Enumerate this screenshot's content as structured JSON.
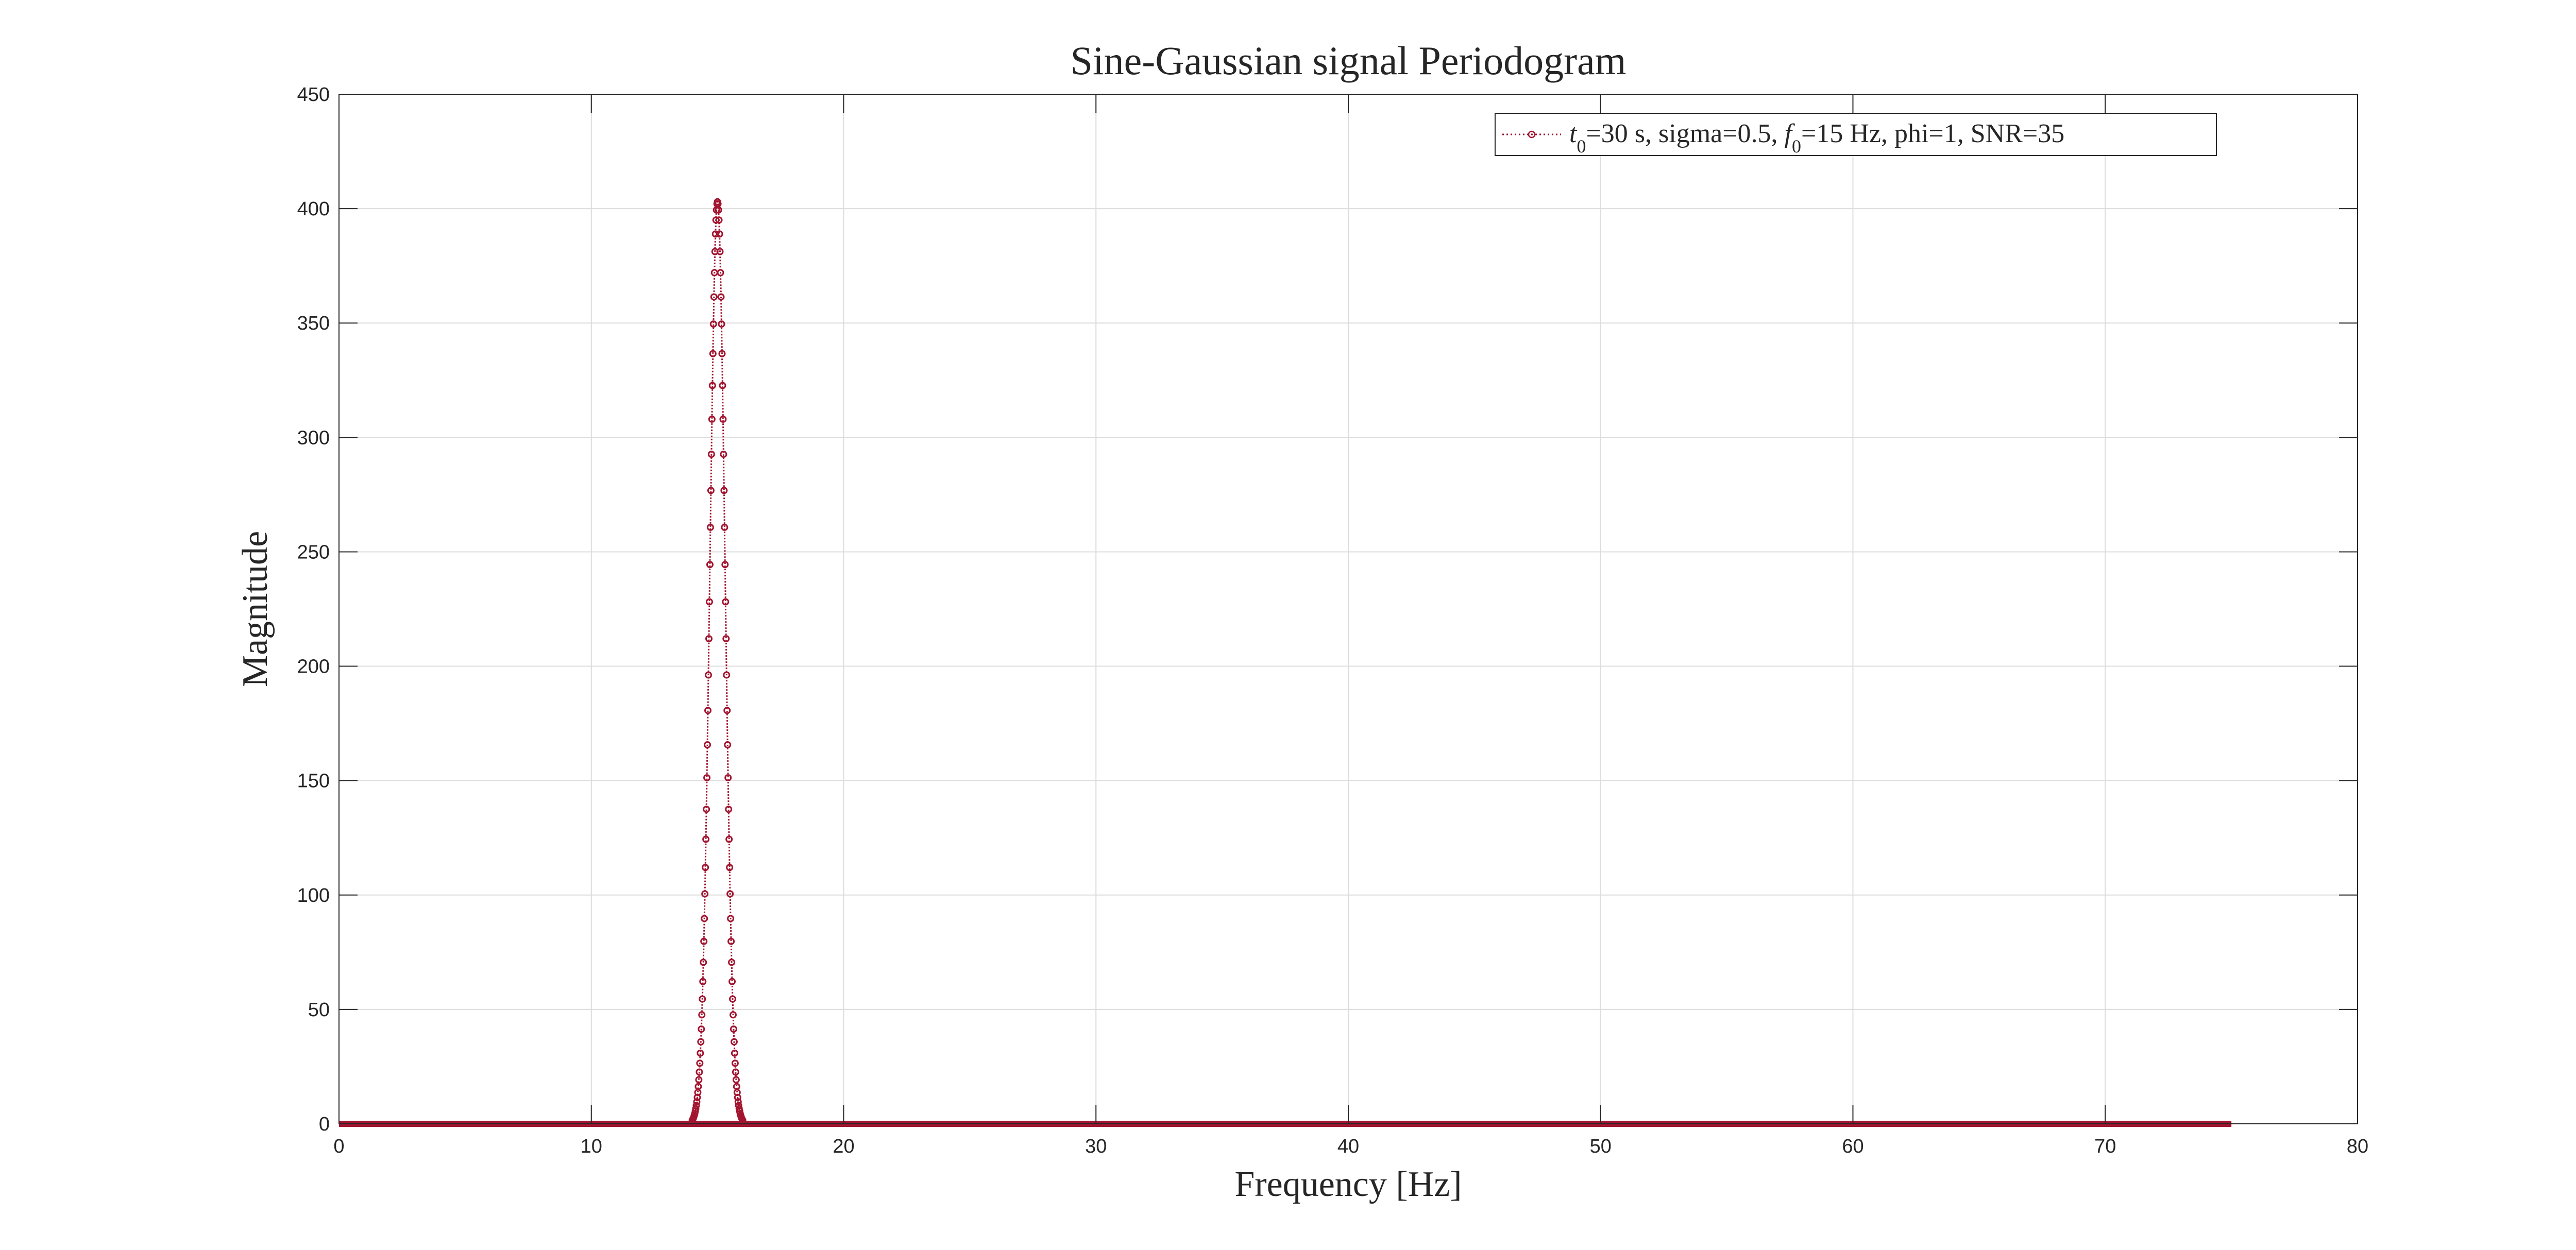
{
  "chart_data": {
    "type": "line",
    "title": "Sine-Gaussian signal Periodogram",
    "xlabel": "Frequency [Hz]",
    "ylabel": "Magnitude",
    "xlim": [
      0,
      80
    ],
    "ylim": [
      0,
      450
    ],
    "xticks": [
      0,
      10,
      20,
      30,
      40,
      50,
      60,
      70,
      80
    ],
    "yticks": [
      0,
      50,
      100,
      150,
      200,
      250,
      300,
      350,
      400,
      450
    ],
    "grid": true,
    "legend_position": "top-right",
    "series": [
      {
        "name": "t0=30 s, sigma=0.5, f0=15 Hz, phi=1, SNR=35",
        "color": "#A2142F",
        "line_style": "dotted",
        "marker": "circle",
        "x_range": [
          0,
          75
        ],
        "peak_x": 15,
        "peak_y": 403,
        "x": [
          0,
          14.0,
          14.1,
          14.2,
          14.3,
          14.4,
          14.5,
          14.6,
          14.7,
          14.8,
          14.9,
          15.0,
          15.1,
          15.2,
          15.3,
          15.4,
          15.5,
          15.6,
          15.7,
          15.8,
          15.9,
          16.0,
          75
        ],
        "y": [
          0,
          1,
          3,
          8,
          17,
          34,
          64,
          114,
          190,
          285,
          370,
          403,
          370,
          285,
          190,
          114,
          64,
          34,
          17,
          8,
          3,
          1,
          0
        ]
      }
    ]
  },
  "legend": {
    "t_sub": "0",
    "f_sub": "0",
    "part1": "=30 s, sigma=0.5, ",
    "part2": "=15 Hz, phi=1, SNR=35"
  }
}
